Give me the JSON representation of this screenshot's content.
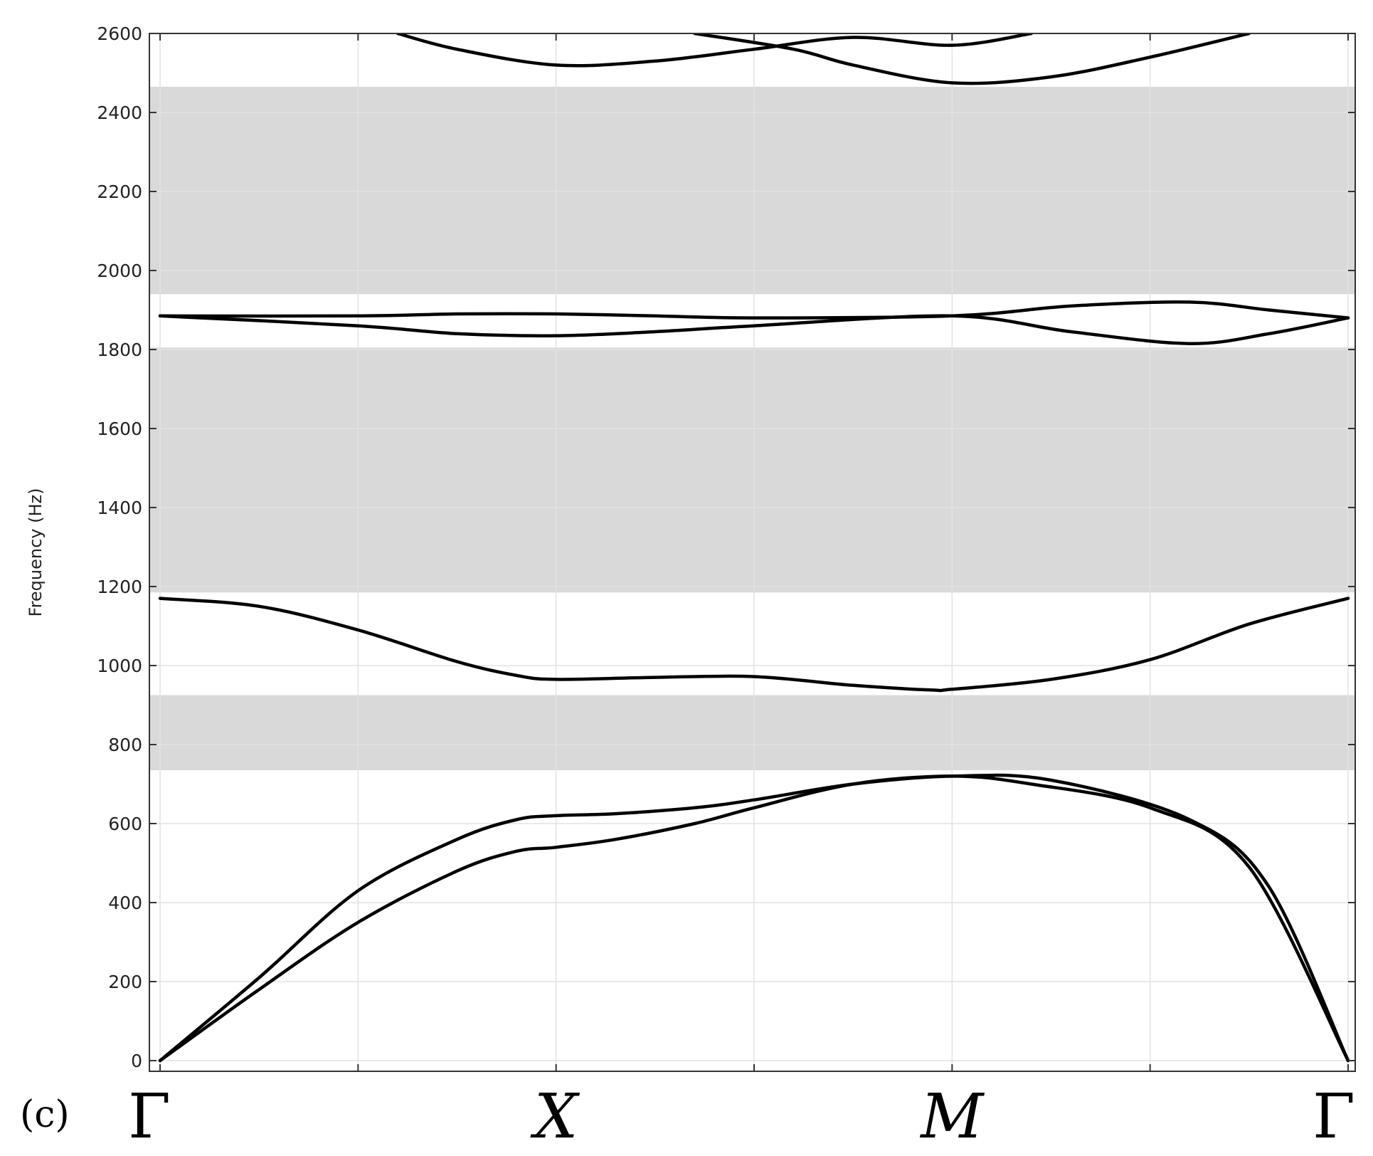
{
  "panel_label": "(c)",
  "chart_data": {
    "type": "line",
    "title": "",
    "xlabel": "",
    "ylabel": "Frequency (Hz)",
    "ylim": [
      0,
      2600
    ],
    "yticks": [
      0,
      200,
      400,
      600,
      800,
      1000,
      1200,
      1400,
      1600,
      1800,
      2000,
      2200,
      2400,
      2600
    ],
    "xlim": [
      0,
      3
    ],
    "high_symmetry_points": [
      {
        "label": "Γ",
        "x": 0,
        "italic": false
      },
      {
        "label": "X",
        "x": 1,
        "italic": true
      },
      {
        "label": "M",
        "x": 2,
        "italic": true
      },
      {
        "label": "Γ",
        "x": 3,
        "italic": false
      }
    ],
    "grid": true,
    "line_color": "#000000",
    "band_gap_color": "#d9d9d9",
    "band_gaps": [
      {
        "y_min": 735,
        "y_max": 925
      },
      {
        "y_min": 1185,
        "y_max": 1805
      },
      {
        "y_min": 1940,
        "y_max": 2465
      }
    ],
    "series": [
      {
        "points": [
          [
            0,
            0
          ],
          [
            0.25,
            180
          ],
          [
            0.5,
            350
          ],
          [
            0.75,
            480
          ],
          [
            0.9,
            530
          ],
          [
            1.0,
            540
          ],
          [
            1.15,
            560
          ],
          [
            1.35,
            600
          ],
          [
            1.5,
            640
          ],
          [
            1.75,
            700
          ],
          [
            2.0,
            720
          ],
          [
            2.2,
            700
          ],
          [
            2.5,
            640
          ],
          [
            2.75,
            490
          ],
          [
            3.0,
            0
          ]
        ]
      },
      {
        "points": [
          [
            0,
            0
          ],
          [
            0.25,
            210
          ],
          [
            0.5,
            430
          ],
          [
            0.75,
            560
          ],
          [
            0.9,
            610
          ],
          [
            1.0,
            620
          ],
          [
            1.15,
            625
          ],
          [
            1.35,
            640
          ],
          [
            1.5,
            660
          ],
          [
            1.75,
            700
          ],
          [
            2.0,
            720
          ],
          [
            2.25,
            710
          ],
          [
            2.6,
            610
          ],
          [
            2.8,
            440
          ],
          [
            3.0,
            0
          ]
        ]
      },
      {
        "points": [
          [
            0,
            1170
          ],
          [
            0.25,
            1150
          ],
          [
            0.5,
            1090
          ],
          [
            0.75,
            1010
          ],
          [
            0.9,
            975
          ],
          [
            1.0,
            965
          ],
          [
            1.25,
            970
          ],
          [
            1.5,
            972
          ],
          [
            1.75,
            950
          ],
          [
            1.95,
            938
          ],
          [
            2.0,
            940
          ],
          [
            2.25,
            965
          ],
          [
            2.5,
            1015
          ],
          [
            2.75,
            1105
          ],
          [
            3.0,
            1170
          ]
        ]
      },
      {
        "points": [
          [
            0,
            1885
          ],
          [
            0.5,
            1860
          ],
          [
            0.75,
            1840
          ],
          [
            1.0,
            1835
          ],
          [
            1.25,
            1845
          ],
          [
            1.5,
            1860
          ],
          [
            2.0,
            1885
          ],
          [
            2.3,
            1845
          ],
          [
            2.6,
            1815
          ],
          [
            2.8,
            1840
          ],
          [
            3.0,
            1880
          ]
        ]
      },
      {
        "points": [
          [
            0,
            1885
          ],
          [
            0.5,
            1885
          ],
          [
            0.75,
            1890
          ],
          [
            1.0,
            1890
          ],
          [
            1.25,
            1885
          ],
          [
            1.5,
            1880
          ],
          [
            2.0,
            1885
          ],
          [
            2.3,
            1910
          ],
          [
            2.6,
            1920
          ],
          [
            2.8,
            1900
          ],
          [
            3.0,
            1880
          ]
        ]
      },
      {
        "points": [
          [
            0.6,
            2600
          ],
          [
            0.75,
            2560
          ],
          [
            1.0,
            2520
          ],
          [
            1.25,
            2530
          ],
          [
            1.5,
            2560
          ],
          [
            1.75,
            2590
          ],
          [
            2.0,
            2570
          ],
          [
            2.2,
            2600
          ]
        ]
      },
      {
        "points": [
          [
            1.35,
            2600
          ],
          [
            1.6,
            2560
          ],
          [
            1.75,
            2520
          ],
          [
            2.0,
            2475
          ],
          [
            2.25,
            2490
          ],
          [
            2.5,
            2540
          ],
          [
            2.75,
            2600
          ]
        ]
      }
    ]
  }
}
